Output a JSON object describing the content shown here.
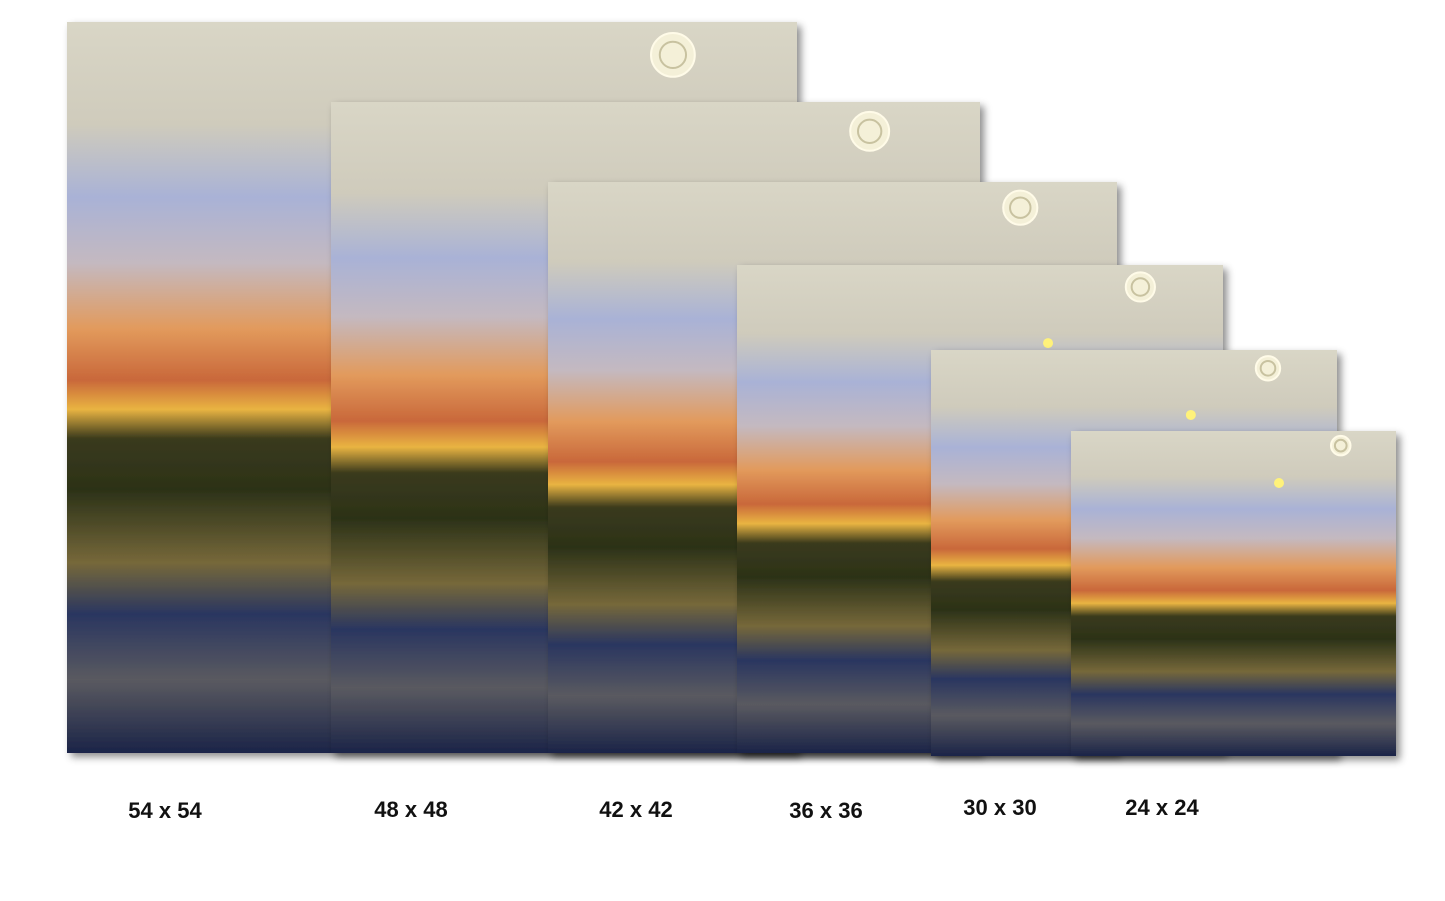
{
  "sizes": [
    "54 x 54",
    "48 x 48",
    "42 x 42",
    "36 x 36",
    "30 x 30",
    "24 x 24"
  ]
}
